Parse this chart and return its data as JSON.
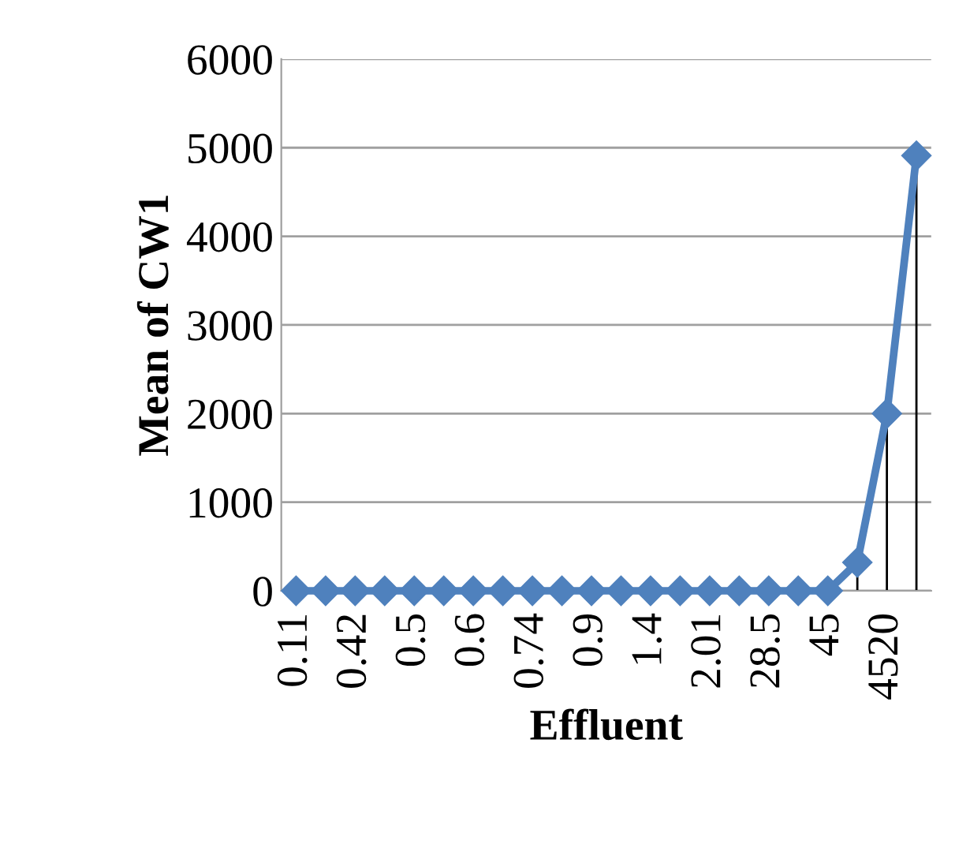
{
  "chart_data": {
    "type": "line",
    "xlabel": "Effluent",
    "ylabel": "Mean of CW1",
    "categories": [
      "0.11",
      null,
      "0.42",
      null,
      "0.5",
      null,
      "0.6",
      null,
      "0.74",
      null,
      "0.9",
      null,
      "1.4",
      null,
      "2.01",
      null,
      "28.5",
      null,
      "45",
      null,
      "4520",
      null
    ],
    "series": [
      {
        "color": "#4f81bd",
        "values": [
          0,
          0,
          0,
          0,
          0,
          0,
          0,
          0,
          0,
          0,
          0,
          0,
          0,
          0,
          0,
          0,
          0,
          0,
          0,
          320,
          2000,
          4910
        ],
        "errors": [
          null,
          null,
          null,
          null,
          null,
          null,
          null,
          null,
          null,
          null,
          null,
          null,
          null,
          null,
          null,
          null,
          null,
          null,
          null,
          [
            0,
            320
          ],
          [
            0,
            2000
          ],
          [
            0,
            4910
          ]
        ]
      }
    ],
    "ylim": [
      0,
      6000
    ],
    "yticks": [
      0,
      1000,
      2000,
      3000,
      4000,
      5000,
      6000
    ],
    "grid": "y",
    "marker": "diamond",
    "line_style": "solid"
  }
}
